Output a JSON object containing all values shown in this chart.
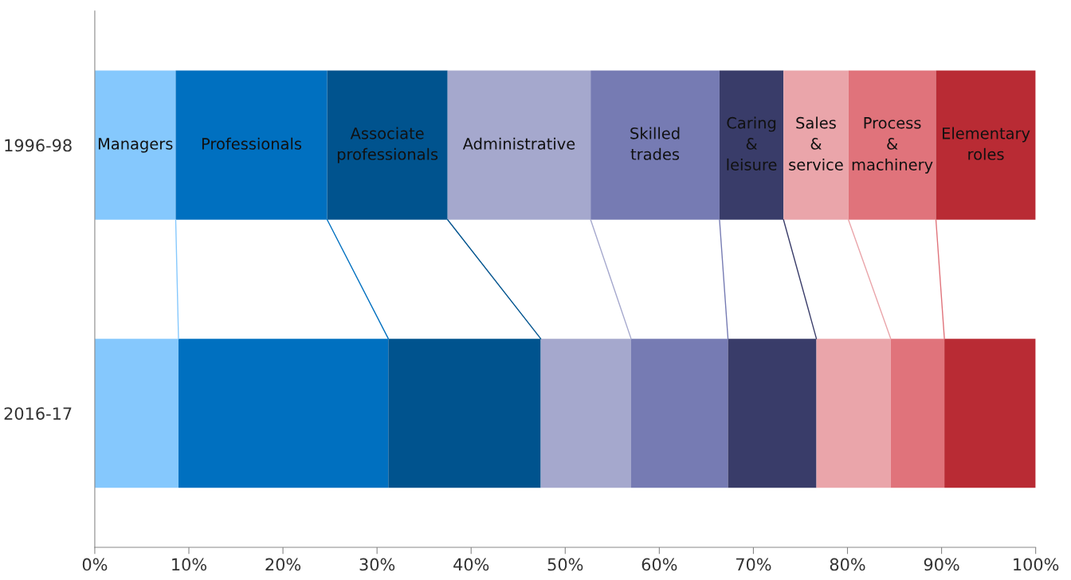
{
  "chart_data": {
    "type": "bar",
    "orientation": "horizontal",
    "stacked": true,
    "categories": [
      "1996-98",
      "2016-17"
    ],
    "series": [
      {
        "name": "Managers",
        "color": "#85c8fd",
        "values": [
          8.6,
          8.9
        ]
      },
      {
        "name": "Professionals",
        "color": "#0070c0",
        "values": [
          16.1,
          22.3
        ]
      },
      {
        "name": "Associate\nprofessionals",
        "color": "#00538e",
        "values": [
          12.8,
          16.2
        ]
      },
      {
        "name": "Administrative",
        "color": "#a5a8cd",
        "values": [
          15.2,
          9.6
        ]
      },
      {
        "name": "Skilled\ntrades",
        "color": "#767bb3",
        "values": [
          13.7,
          10.3
        ]
      },
      {
        "name": "Caring\n&\nleisure",
        "color": "#393c69",
        "values": [
          6.8,
          9.4
        ]
      },
      {
        "name": "Sales\n&\nservice",
        "color": "#eaa5aa",
        "values": [
          6.9,
          7.9
        ]
      },
      {
        "name": "Process\n&\nmachinery",
        "color": "#e0737b",
        "values": [
          9.3,
          5.7
        ]
      },
      {
        "name": "Elementary\nroles",
        "color": "#b92b34",
        "values": [
          10.6,
          9.7
        ]
      }
    ],
    "xlim": [
      0,
      100
    ],
    "xticks": [
      {
        "value": 0,
        "label": "0%"
      },
      {
        "value": 10,
        "label": "10%"
      },
      {
        "value": 20,
        "label": "20%"
      },
      {
        "value": 30,
        "label": "30%"
      },
      {
        "value": 40,
        "label": "40%"
      },
      {
        "value": 50,
        "label": "50%"
      },
      {
        "value": 60,
        "label": "60%"
      },
      {
        "value": 70,
        "label": "70%"
      },
      {
        "value": 80,
        "label": "80%"
      },
      {
        "value": 90,
        "label": "90%"
      },
      {
        "value": 100,
        "label": "100%"
      }
    ],
    "grid": false,
    "legend": false
  }
}
